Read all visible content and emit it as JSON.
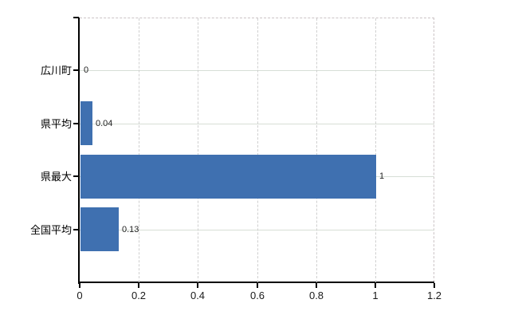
{
  "chart_data": {
    "type": "bar",
    "orientation": "horizontal",
    "title": "",
    "xlabel": "",
    "ylabel": "",
    "categories": [
      "広川町",
      "県平均",
      "県最大",
      "全国平均"
    ],
    "values": [
      0,
      0.04,
      1,
      0.13
    ],
    "value_labels": [
      "0",
      "0.04",
      "1",
      "0.13"
    ],
    "xlim": [
      0,
      1.2
    ],
    "x_ticks": [
      0,
      0.2,
      0.4,
      0.6,
      0.8,
      1,
      1.2
    ],
    "x_tick_labels": [
      "0",
      "0.2",
      "0.4",
      "0.6",
      "0.8",
      "1",
      "1.2"
    ],
    "grid": true,
    "legend": false,
    "colors": {
      "bar": "#3f70b0",
      "axis": "#000000",
      "horizontal_grid": "#d7ded6",
      "vertical_grid": "#d0d0d0",
      "dashed_border": "#ccc4c6",
      "category_text": "#000000",
      "value_text": "#222222",
      "tick_text": "#1a1a1a",
      "background": "#ffffff"
    }
  }
}
